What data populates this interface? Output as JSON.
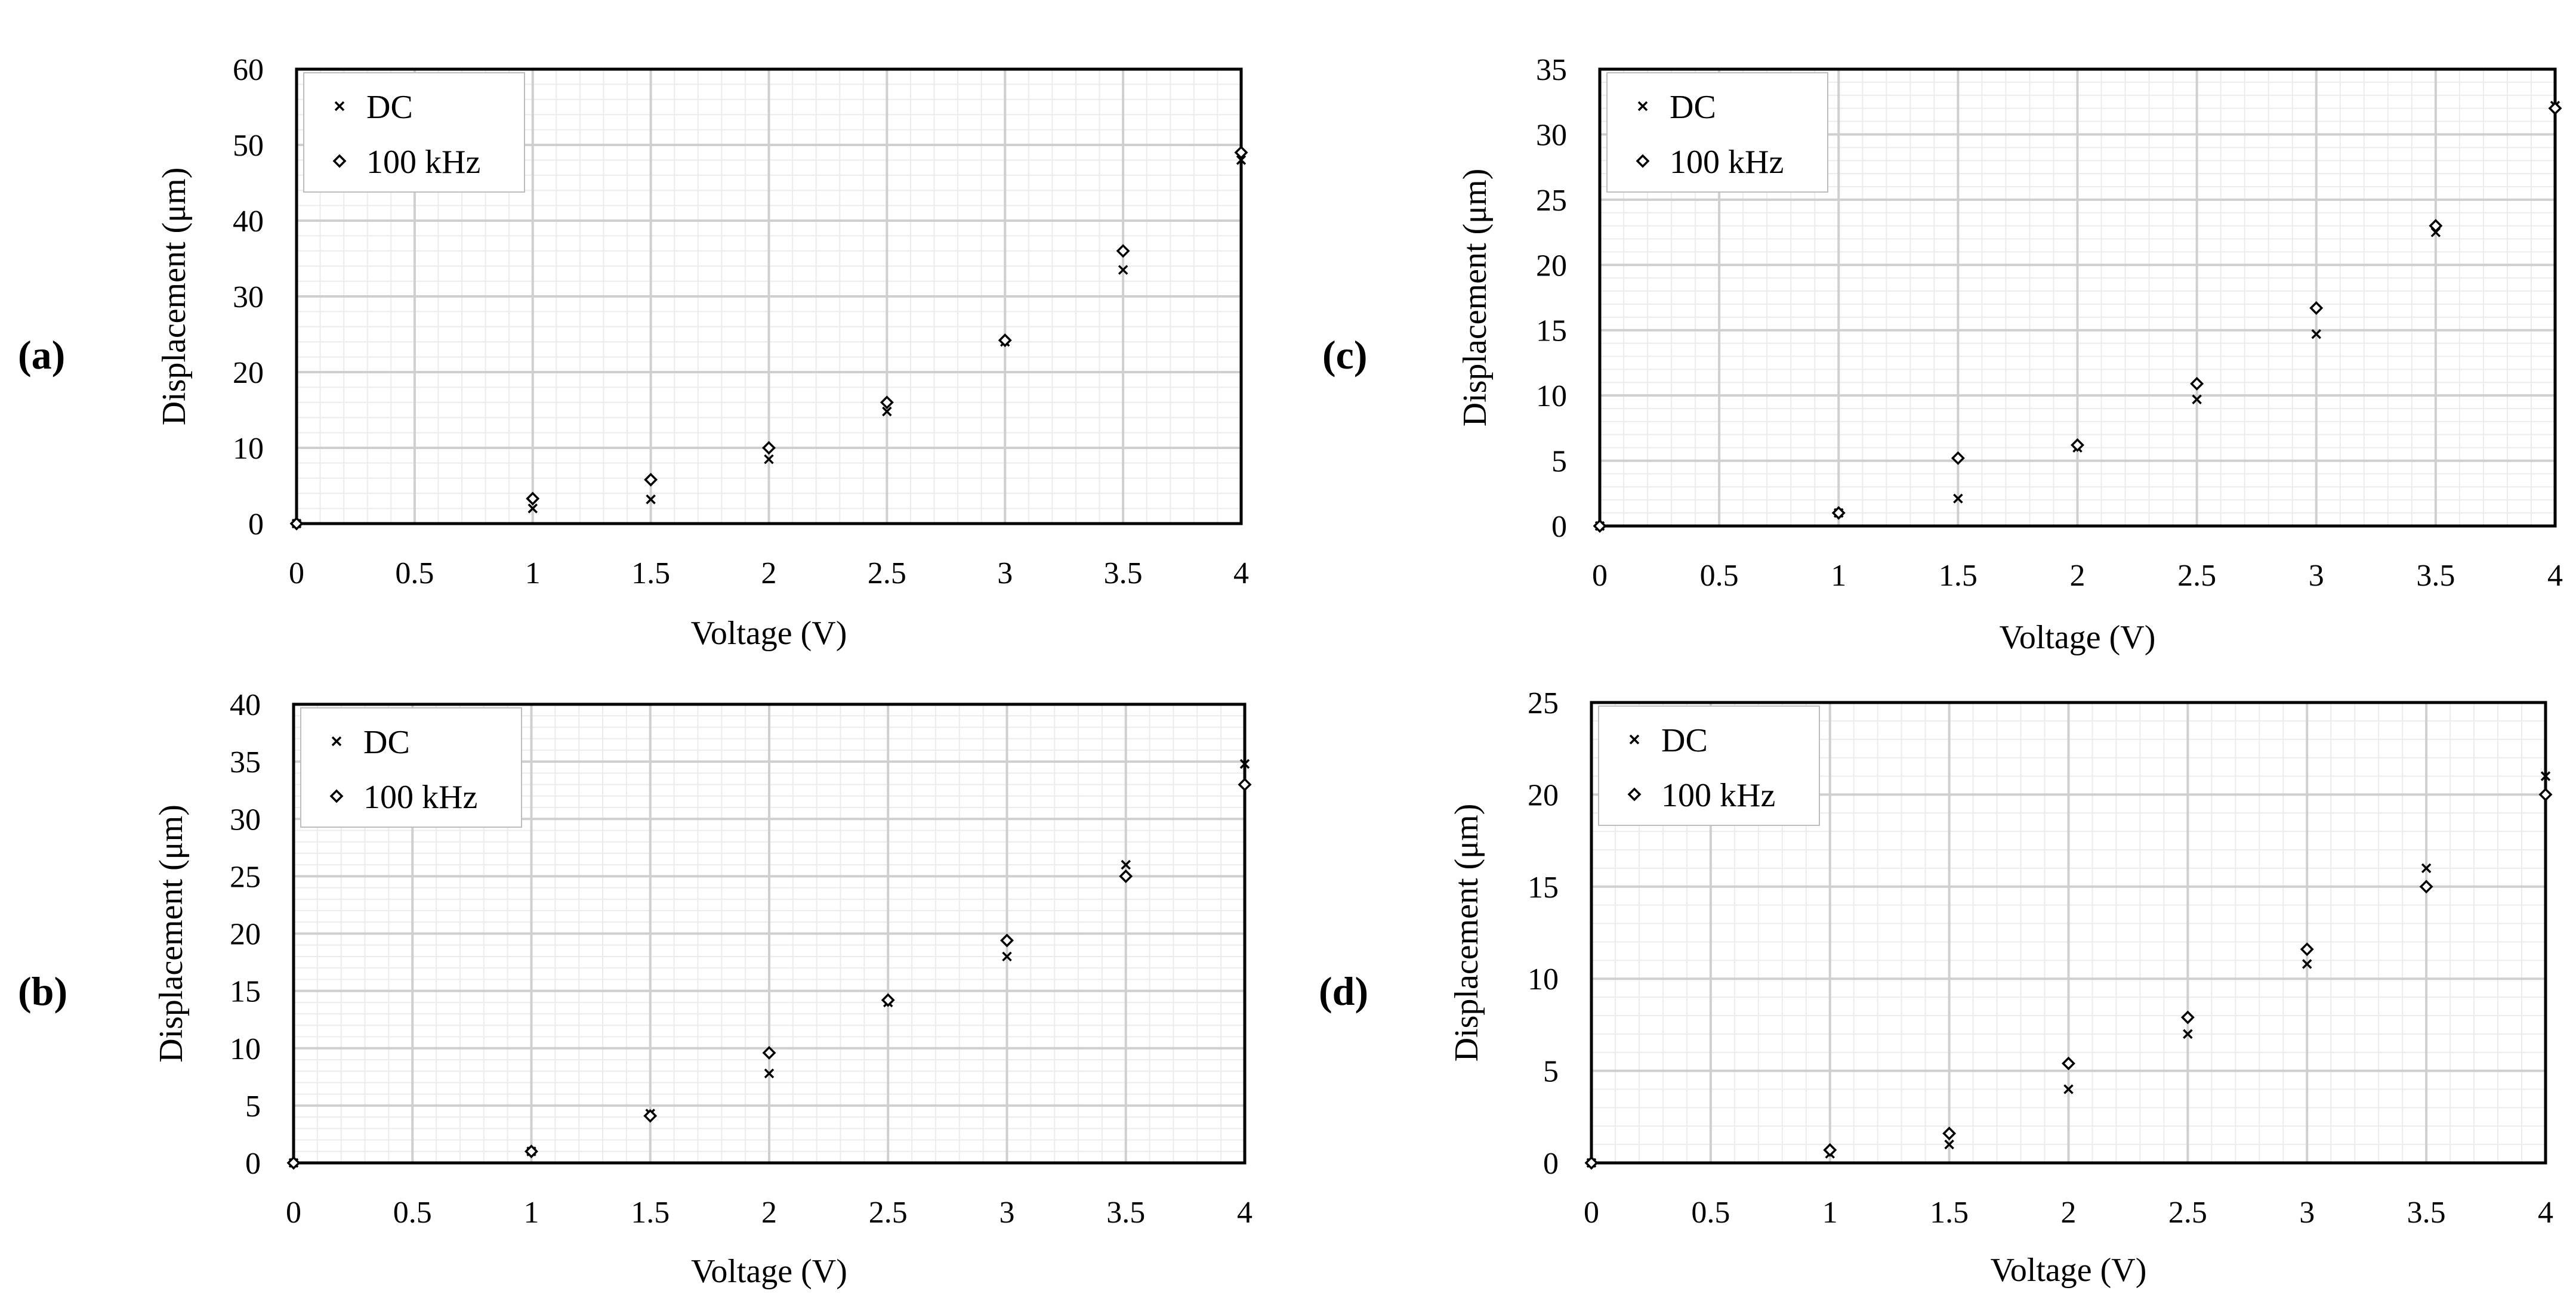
{
  "chart_data": [
    {
      "id": "a",
      "type": "scatter",
      "panel_label": "(a)",
      "xlabel": "Voltage (V)",
      "ylabel": "Displacement (μm)",
      "xlim": [
        0,
        4
      ],
      "ylim": [
        0,
        60
      ],
      "xticks": [
        "0",
        "0.5",
        "1",
        "1.5",
        "2",
        "2.5",
        "3",
        "3.5",
        "4"
      ],
      "yticks": [
        "0",
        "10",
        "20",
        "30",
        "40",
        "50",
        "60"
      ],
      "legend": "top-left",
      "series": [
        {
          "name": "DC",
          "marker": "x",
          "x": [
            0,
            1,
            1.5,
            2,
            2.5,
            3,
            3.5,
            4
          ],
          "y": [
            0,
            2,
            3.2,
            8.5,
            14.8,
            24,
            33.5,
            48
          ]
        },
        {
          "name": "100 kHz",
          "marker": "diamond",
          "x": [
            0,
            1,
            1.5,
            2,
            2.5,
            3,
            3.5,
            4
          ],
          "y": [
            0,
            3.3,
            5.8,
            10,
            16,
            24.2,
            36,
            49
          ]
        }
      ]
    },
    {
      "id": "b",
      "type": "scatter",
      "panel_label": "(b)",
      "xlabel": "Voltage (V)",
      "ylabel": "Displacement (μm)",
      "xlim": [
        0,
        4
      ],
      "ylim": [
        0,
        40
      ],
      "xticks": [
        "0",
        "0.5",
        "1",
        "1.5",
        "2",
        "2.5",
        "3",
        "3.5",
        "4"
      ],
      "yticks": [
        "0",
        "5",
        "10",
        "15",
        "20",
        "25",
        "30",
        "35",
        "40"
      ],
      "legend": "top-left",
      "series": [
        {
          "name": "DC",
          "marker": "x",
          "x": [
            0,
            1,
            1.5,
            2,
            2.5,
            3,
            3.5,
            4
          ],
          "y": [
            0,
            1,
            4.3,
            7.8,
            14,
            18,
            26,
            34.8
          ]
        },
        {
          "name": "100 kHz",
          "marker": "diamond",
          "x": [
            0,
            1,
            1.5,
            2,
            2.5,
            3,
            3.5,
            4
          ],
          "y": [
            0,
            1,
            4.1,
            9.6,
            14.2,
            19.4,
            25,
            33
          ]
        }
      ]
    },
    {
      "id": "c",
      "type": "scatter",
      "panel_label": "(c)",
      "xlabel": "Voltage (V)",
      "ylabel": "Displacement (μm)",
      "xlim": [
        0,
        4
      ],
      "ylim": [
        0,
        35
      ],
      "xticks": [
        "0",
        "0.5",
        "1",
        "1.5",
        "2",
        "2.5",
        "3",
        "3.5",
        "4"
      ],
      "yticks": [
        "0",
        "5",
        "10",
        "15",
        "20",
        "25",
        "30",
        "35"
      ],
      "legend": "top-left",
      "series": [
        {
          "name": "DC",
          "marker": "x",
          "x": [
            0,
            1,
            1.5,
            2,
            2.5,
            3,
            3.5,
            4
          ],
          "y": [
            0,
            1,
            2.1,
            6,
            9.7,
            14.7,
            22.5,
            32.2
          ]
        },
        {
          "name": "100 kHz",
          "marker": "diamond",
          "x": [
            0,
            1,
            1.5,
            2,
            2.5,
            3,
            3.5,
            4
          ],
          "y": [
            0,
            1,
            5.2,
            6.2,
            10.9,
            16.7,
            23,
            32
          ]
        }
      ]
    },
    {
      "id": "d",
      "type": "scatter",
      "panel_label": "(d)",
      "xlabel": "Voltage (V)",
      "ylabel": "Displacement (μm)",
      "xlim": [
        0,
        4
      ],
      "ylim": [
        0,
        25
      ],
      "xticks": [
        "0",
        "0.5",
        "1",
        "1.5",
        "2",
        "2.5",
        "3",
        "3.5",
        "4"
      ],
      "yticks": [
        "0",
        "5",
        "10",
        "15",
        "20",
        "25"
      ],
      "legend": "top-left",
      "series": [
        {
          "name": "DC",
          "marker": "x",
          "x": [
            0,
            1,
            1.5,
            2,
            2.5,
            3,
            3.5,
            4
          ],
          "y": [
            0,
            0.5,
            1,
            4,
            7,
            10.8,
            16,
            21
          ]
        },
        {
          "name": "100 kHz",
          "marker": "diamond",
          "x": [
            0,
            1,
            1.5,
            2,
            2.5,
            3,
            3.5,
            4
          ],
          "y": [
            0,
            0.7,
            1.6,
            5.4,
            7.9,
            11.6,
            15,
            20
          ]
        }
      ]
    }
  ]
}
